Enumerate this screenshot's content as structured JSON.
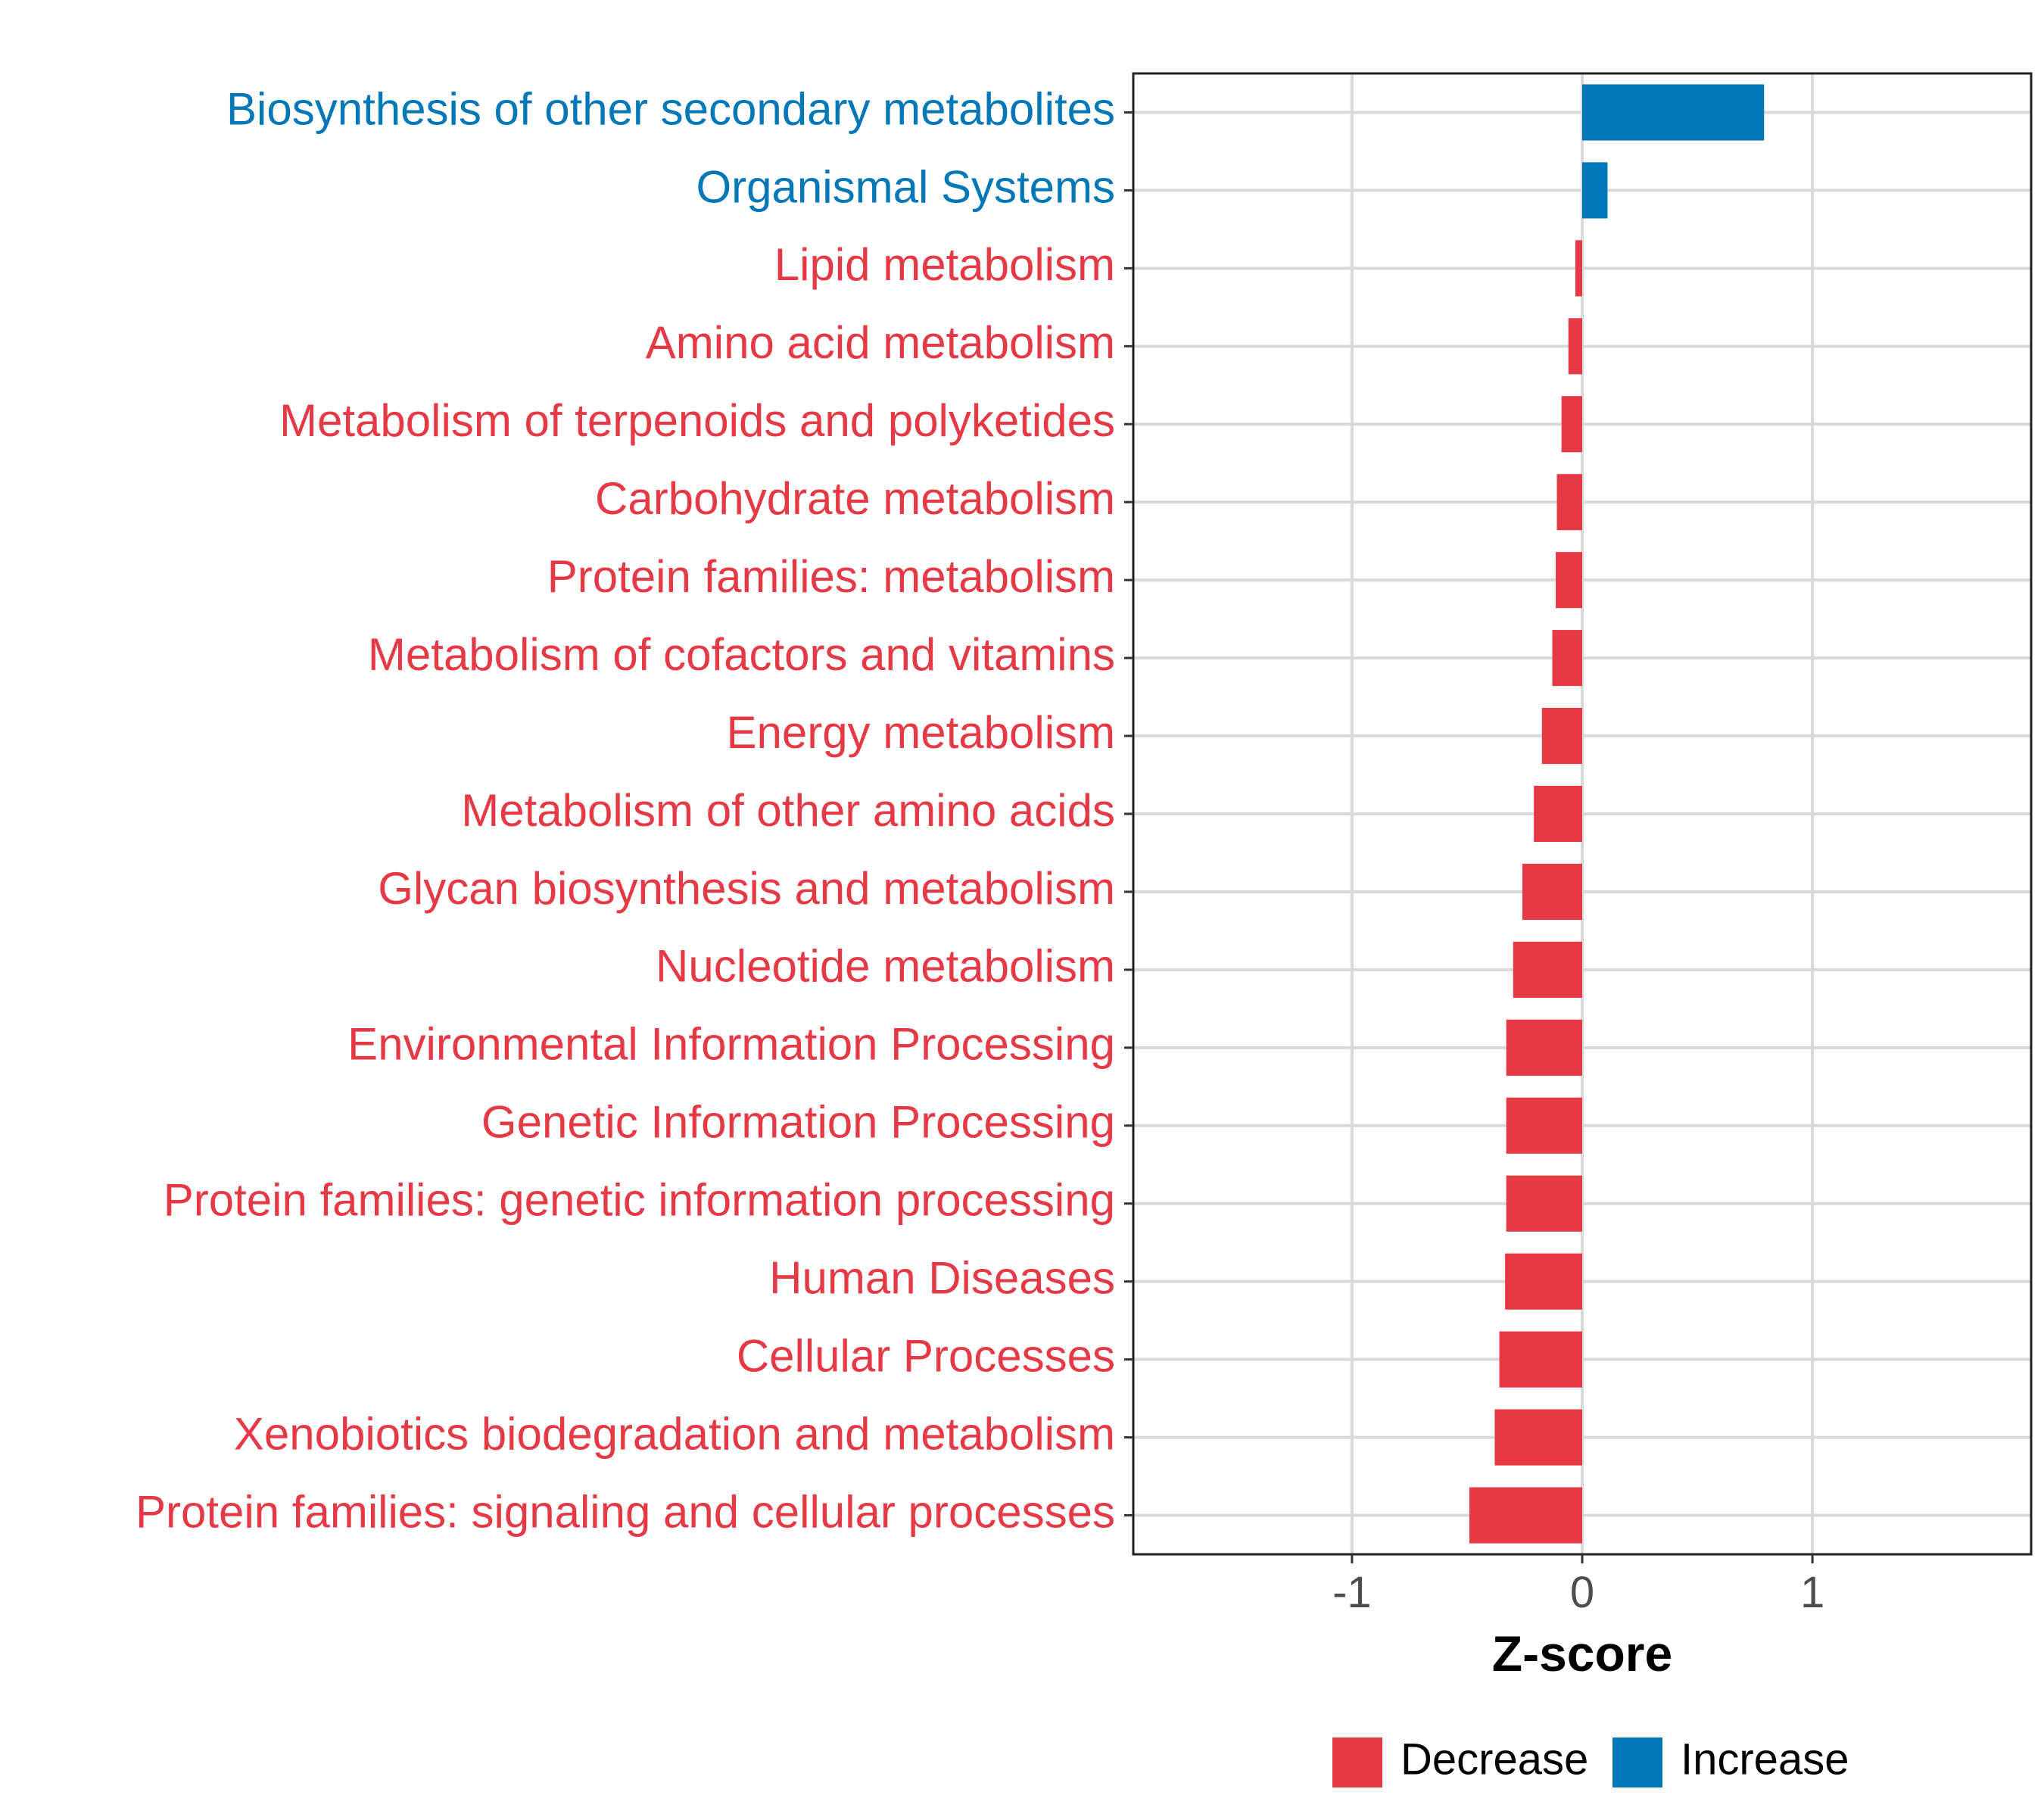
{
  "chart_data": {
    "type": "bar",
    "orientation": "horizontal",
    "title": "",
    "xlabel": "Z-score",
    "ylabel": "",
    "xlim": [
      -1.95,
      1.95
    ],
    "xticks": [
      {
        "value": -1,
        "label": "-1"
      },
      {
        "value": 0,
        "label": "0"
      },
      {
        "value": 1,
        "label": "1"
      }
    ],
    "grid": true,
    "legend_position": "bottom",
    "groups": [
      {
        "key": "decrease",
        "name": "Decrease",
        "color": "#E63946"
      },
      {
        "key": "increase",
        "name": "Increase",
        "color": "#0077B6"
      }
    ],
    "categories": [
      "Biosynthesis of other secondary metabolites",
      "Organismal Systems",
      "Lipid metabolism",
      "Amino acid metabolism",
      "Metabolism of terpenoids and polyketides",
      "Carbohydrate metabolism",
      "Protein families: metabolism",
      "Metabolism of cofactors and vitamins",
      "Energy metabolism",
      "Metabolism of other amino acids",
      "Glycan biosynthesis and metabolism",
      "Nucleotide metabolism",
      "Environmental Information Processing",
      "Genetic Information Processing",
      "Protein families: genetic information processing",
      "Human Diseases",
      "Cellular Processes",
      "Xenobiotics biodegradation and metabolism",
      "Protein families: signaling and cellular processes"
    ],
    "values": [
      0.79,
      0.11,
      -0.03,
      -0.06,
      -0.09,
      -0.11,
      -0.115,
      -0.13,
      -0.175,
      -0.21,
      -0.26,
      -0.3,
      -0.33,
      -0.33,
      -0.33,
      -0.335,
      -0.36,
      -0.38,
      -0.49
    ],
    "value_groups": [
      "increase",
      "increase",
      "decrease",
      "decrease",
      "decrease",
      "decrease",
      "decrease",
      "decrease",
      "decrease",
      "decrease",
      "decrease",
      "decrease",
      "decrease",
      "decrease",
      "decrease",
      "decrease",
      "decrease",
      "decrease",
      "decrease"
    ]
  }
}
